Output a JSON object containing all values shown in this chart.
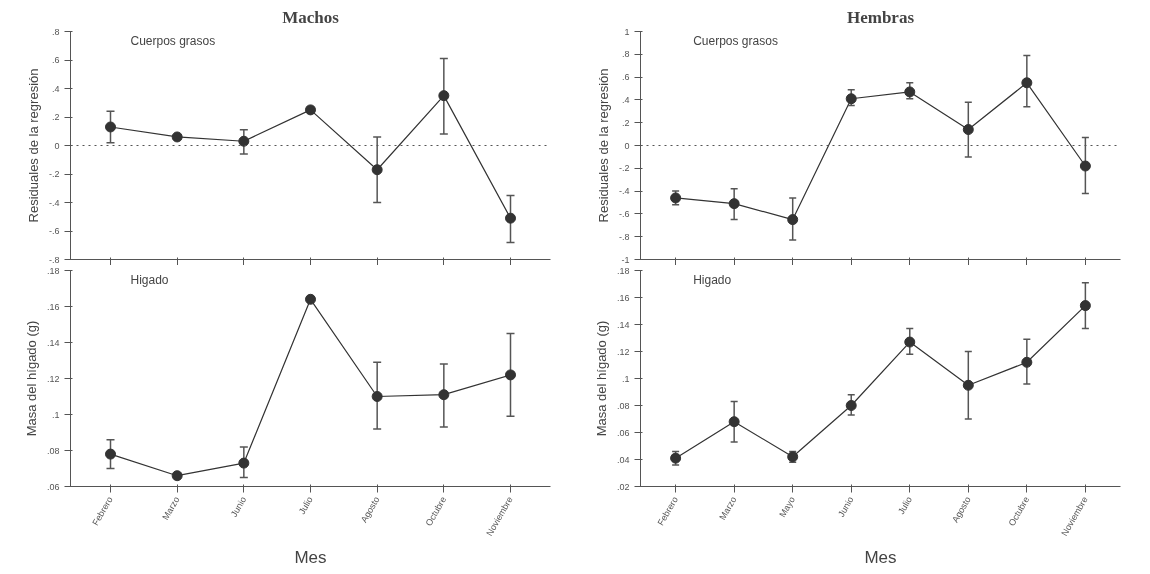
{
  "chart_data": [
    {
      "type": "line",
      "title": "Machos",
      "ylabel": "Residuales de la regresión",
      "annotations": [
        "Cuerpos grasos"
      ],
      "categories": [
        null,
        null,
        null,
        null,
        null,
        null,
        null
      ],
      "tick_labels": "y",
      "series": [
        {
          "color": "#333333",
          "values": [
            0.13,
            0.06,
            0.03,
            0.25,
            -0.17,
            0.35,
            -0.51
          ],
          "errors": [
            [
              0.02,
              0.24
            ],
            null,
            [
              -0.06,
              0.11
            ],
            null,
            [
              -0.4,
              0.06
            ],
            [
              0.08,
              0.61
            ],
            [
              -0.68,
              -0.35
            ]
          ]
        }
      ],
      "ylim": [
        -0.8,
        0.8
      ],
      "yticks": [
        {
          "value": -0.8,
          "label": "-.8"
        },
        {
          "value": -0.6,
          "label": "-.6"
        },
        {
          "value": -0.4,
          "label": "-.4"
        },
        {
          "value": -0.2,
          "label": "-.2"
        },
        0,
        {
          "value": 0.2,
          "label": ".2"
        },
        {
          "value": 0.4,
          "label": ".4"
        },
        {
          "value": 0.6,
          "label": ".6"
        },
        {
          "value": 0.8,
          "label": ".8"
        }
      ],
      "ref_lines": [
        {
          "axis": "y",
          "value": 0,
          "line_style": "dotted",
          "color": "#555555"
        }
      ],
      "marker": "circle",
      "grid": false
    },
    {
      "type": "line",
      "title": "Hembras",
      "ylabel": "Residuales de la regresión",
      "annotations": [
        "Cuerpos grasos"
      ],
      "categories": [
        null,
        null,
        null,
        null,
        null,
        null,
        null,
        null
      ],
      "tick_labels": "y",
      "series": [
        {
          "color": "#333333",
          "values": [
            -0.46,
            -0.51,
            -0.65,
            0.41,
            0.47,
            0.14,
            0.55,
            -0.18
          ],
          "errors": [
            [
              -0.52,
              -0.4
            ],
            [
              -0.65,
              -0.38
            ],
            [
              -0.83,
              -0.46
            ],
            [
              0.35,
              0.49
            ],
            [
              0.41,
              0.55
            ],
            [
              -0.1,
              0.38
            ],
            [
              0.34,
              0.79
            ],
            [
              -0.42,
              0.07
            ]
          ]
        }
      ],
      "ylim": [
        -1,
        1
      ],
      "yticks": [
        -1,
        {
          "value": -0.8,
          "label": "-.8"
        },
        {
          "value": -0.6,
          "label": "-.6"
        },
        {
          "value": -0.4,
          "label": "-.4"
        },
        {
          "value": -0.2,
          "label": "-.2"
        },
        0,
        {
          "value": 0.2,
          "label": ".2"
        },
        {
          "value": 0.4,
          "label": ".4"
        },
        {
          "value": 0.6,
          "label": ".6"
        },
        {
          "value": 0.8,
          "label": ".8"
        },
        1
      ],
      "ref_lines": [
        {
          "axis": "y",
          "value": 0,
          "line_style": "dotted",
          "color": "#555555"
        }
      ],
      "marker": "circle",
      "grid": false
    },
    {
      "type": "line",
      "xlabel": "Mes",
      "ylabel": "Masa del hígado (g)",
      "annotations": [
        "Higado"
      ],
      "categories": [
        "Febrero",
        "Marzo",
        "Junio",
        "Julio",
        "Agosto",
        "Octubre",
        "Noviembre"
      ],
      "series": [
        {
          "color": "#333333",
          "values": [
            0.078,
            0.066,
            0.073,
            0.164,
            0.11,
            0.111,
            0.122
          ],
          "errors": [
            [
              0.07,
              0.086
            ],
            null,
            [
              0.065,
              0.082
            ],
            null,
            [
              0.092,
              0.129
            ],
            [
              0.093,
              0.128
            ],
            [
              0.099,
              0.145
            ]
          ]
        }
      ],
      "ylim": [
        0.06,
        0.18
      ],
      "yticks": [
        {
          "value": 0.06,
          "label": ".06"
        },
        {
          "value": 0.08,
          "label": ".08"
        },
        {
          "value": 0.1,
          "label": ".1"
        },
        {
          "value": 0.12,
          "label": ".12"
        },
        {
          "value": 0.14,
          "label": ".14"
        },
        {
          "value": 0.16,
          "label": ".16"
        },
        {
          "value": 0.18,
          "label": ".18"
        }
      ],
      "marker": "circle",
      "grid": false
    },
    {
      "type": "line",
      "xlabel": "Mes",
      "ylabel": "Masa del hígado (g)",
      "annotations": [
        "Higado"
      ],
      "categories": [
        "Febrero",
        "Marzo",
        "Mayo",
        "Junio",
        "Julio",
        "Agosto",
        "Octubre",
        "Noviembre"
      ],
      "series": [
        {
          "color": "#333333",
          "values": [
            0.041,
            0.068,
            0.042,
            0.08,
            0.127,
            0.095,
            0.112,
            0.154
          ],
          "errors": [
            [
              0.036,
              0.046
            ],
            [
              0.053,
              0.083
            ],
            [
              0.038,
              0.046
            ],
            [
              0.073,
              0.088
            ],
            [
              0.118,
              0.137
            ],
            [
              0.07,
              0.12
            ],
            [
              0.096,
              0.129
            ],
            [
              0.137,
              0.171
            ]
          ]
        }
      ],
      "ylim": [
        0.02,
        0.18
      ],
      "yticks": [
        {
          "value": 0.02,
          "label": ".02"
        },
        {
          "value": 0.04,
          "label": ".04"
        },
        {
          "value": 0.06,
          "label": ".06"
        },
        {
          "value": 0.08,
          "label": ".08"
        },
        {
          "value": 0.1,
          "label": ".1"
        },
        {
          "value": 0.12,
          "label": ".12"
        },
        {
          "value": 0.14,
          "label": ".14"
        },
        {
          "value": 0.16,
          "label": ".16"
        },
        {
          "value": 0.18,
          "label": ".18"
        }
      ],
      "marker": "circle",
      "grid": false
    }
  ]
}
